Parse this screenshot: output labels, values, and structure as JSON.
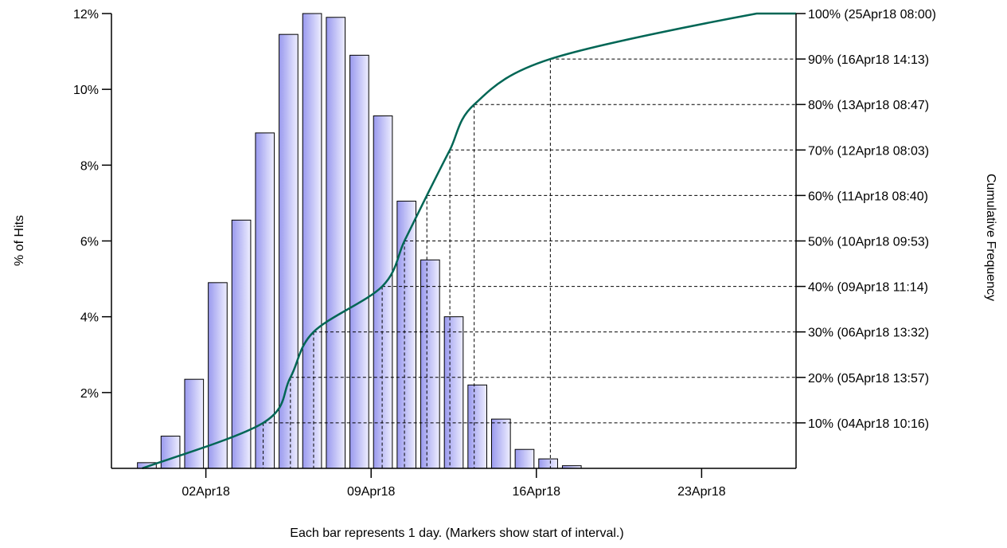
{
  "chart_data": {
    "type": "bar",
    "xlabel": "Each bar represents 1 day. (Markers show start of interval.)",
    "ylabel": "% of Hits",
    "y2label": "Cumulative Frequency",
    "ylim": [
      0,
      12
    ],
    "y2lim": [
      0,
      100
    ],
    "xlim": [
      "2018-03-29",
      "2018-04-27"
    ],
    "y_ticks": [
      {
        "value": 2,
        "label": "2%"
      },
      {
        "value": 4,
        "label": "4%"
      },
      {
        "value": 6,
        "label": "6%"
      },
      {
        "value": 8,
        "label": "8%"
      },
      {
        "value": 10,
        "label": "10%"
      },
      {
        "value": 12,
        "label": "12%"
      }
    ],
    "x_ticks": [
      {
        "date": "2018-04-02",
        "label": "02Apr18"
      },
      {
        "date": "2018-04-09",
        "label": "09Apr18"
      },
      {
        "date": "2018-04-16",
        "label": "16Apr18"
      },
      {
        "date": "2018-04-23",
        "label": "23Apr18"
      }
    ],
    "bars": [
      {
        "date": "2018-03-30",
        "value": 0.15
      },
      {
        "date": "2018-03-31",
        "value": 0.85
      },
      {
        "date": "2018-04-01",
        "value": 2.35
      },
      {
        "date": "2018-04-02",
        "value": 4.9
      },
      {
        "date": "2018-04-03",
        "value": 6.55
      },
      {
        "date": "2018-04-04",
        "value": 8.85
      },
      {
        "date": "2018-04-05",
        "value": 11.45
      },
      {
        "date": "2018-04-06",
        "value": 12.0
      },
      {
        "date": "2018-04-07",
        "value": 11.9
      },
      {
        "date": "2018-04-08",
        "value": 10.9
      },
      {
        "date": "2018-04-09",
        "value": 9.3
      },
      {
        "date": "2018-04-10",
        "value": 7.05
      },
      {
        "date": "2018-04-11",
        "value": 5.5
      },
      {
        "date": "2018-04-12",
        "value": 4.0
      },
      {
        "date": "2018-04-13",
        "value": 2.2
      },
      {
        "date": "2018-04-14",
        "value": 1.3
      },
      {
        "date": "2018-04-15",
        "value": 0.5
      },
      {
        "date": "2018-04-16",
        "value": 0.25
      },
      {
        "date": "2018-04-17",
        "value": 0.07
      }
    ],
    "cumulative_markers": [
      {
        "pct": 10,
        "label": "10% (04Apr18 10:16)"
      },
      {
        "pct": 20,
        "label": "20% (05Apr18 13:57)"
      },
      {
        "pct": 30,
        "label": "30% (06Apr18 13:32)"
      },
      {
        "pct": 40,
        "label": "40% (09Apr18 11:14)"
      },
      {
        "pct": 50,
        "label": "50% (10Apr18 09:53)"
      },
      {
        "pct": 60,
        "label": "60% (11Apr18 08:40)"
      },
      {
        "pct": 70,
        "label": "70% (12Apr18 08:03)"
      },
      {
        "pct": 80,
        "label": "80% (13Apr18 08:47)"
      },
      {
        "pct": 90,
        "label": "90% (16Apr18 14:13)"
      },
      {
        "pct": 100,
        "label": "100% (25Apr18 08:00)"
      }
    ],
    "colors": {
      "bar_fill_dark": "#9999ee",
      "bar_fill_light": "#eeeeff",
      "bar_stroke": "#000000",
      "cumulative_line": "#006655",
      "axis": "#000000"
    },
    "grid": false,
    "legend": "none"
  }
}
